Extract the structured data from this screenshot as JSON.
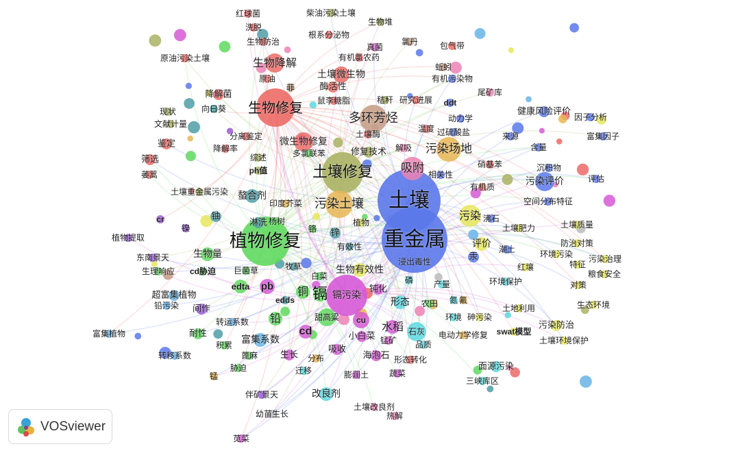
{
  "app": {
    "logo_text": "VOSviewer"
  },
  "cluster_colors": {
    "red": "#ec6a66",
    "green": "#5fd95f",
    "blue": "#5b78ea",
    "yellow": "#e6e65c",
    "magenta": "#d65ad6",
    "cyan": "#5ad8de",
    "brown": "#c49a82",
    "olive": "#aab263",
    "orange": "#e8b654",
    "teal": "#4f9ea6",
    "lightblue": "#67b4e6",
    "pink": "#ec82b4",
    "violet": "#9a5ad6",
    "grey": "#bbbbbb"
  },
  "nodes": [
    {
      "label": "红球菌",
      "cluster": "red"
    },
    {
      "label": "洗脱",
      "cluster": "red"
    },
    {
      "label": "柴油污染土壤",
      "cluster": "olive"
    },
    {
      "label": "生物堆",
      "cluster": "olive"
    },
    {
      "label": "根系分泌物",
      "cluster": "red"
    },
    {
      "label": "生物防治",
      "cluster": "red"
    },
    {
      "label": "真菌",
      "cluster": "magenta"
    },
    {
      "label": "氯丹",
      "cluster": "brown"
    },
    {
      "label": "包气带",
      "cluster": "red"
    },
    {
      "label": "原油污染土壤",
      "cluster": "red"
    },
    {
      "label": "生物降解",
      "cluster": "red"
    },
    {
      "label": "有机氯农药",
      "cluster": "red"
    },
    {
      "label": "蚯蚓",
      "cluster": "brown"
    },
    {
      "label": "有机污染物",
      "cluster": "blue"
    },
    {
      "label": "原油",
      "cluster": "red"
    },
    {
      "label": "土壤微生物",
      "cluster": "red"
    },
    {
      "label": "菲",
      "cluster": "brown"
    },
    {
      "label": "酶活性",
      "cluster": "red"
    },
    {
      "label": "降解菌",
      "cluster": "red"
    },
    {
      "label": "尾矿库",
      "cluster": "pink"
    },
    {
      "label": "秸秆",
      "cluster": "olive"
    },
    {
      "label": "研究进展",
      "cluster": "red"
    },
    {
      "label": "鼠李糖脂",
      "cluster": "red"
    },
    {
      "label": "ddt",
      "cluster": "blue"
    },
    {
      "label": "生物修复",
      "cluster": "red"
    },
    {
      "label": "现状",
      "cluster": "olive"
    },
    {
      "label": "向日葵",
      "cluster": "teal"
    },
    {
      "label": "健康风险评价",
      "cluster": "blue"
    },
    {
      "label": "因子分析",
      "cluster": "blue"
    },
    {
      "label": "动力学",
      "cluster": "blue"
    },
    {
      "label": "多环芳烃",
      "cluster": "brown"
    },
    {
      "label": "文献计量",
      "cluster": "olive"
    },
    {
      "label": "温度",
      "cluster": "red"
    },
    {
      "label": "过硫酸盐",
      "cluster": "blue"
    },
    {
      "label": "土壤酶",
      "cluster": "red"
    },
    {
      "label": "来源",
      "cluster": "blue"
    },
    {
      "label": "富集因子",
      "cluster": "blue"
    },
    {
      "label": "分离鉴定",
      "cluster": "red"
    },
    {
      "label": "鉴定",
      "cluster": "red"
    },
    {
      "label": "解吸",
      "cluster": "pink"
    },
    {
      "label": "微生物修复",
      "cluster": "red"
    },
    {
      "label": "降解率",
      "cluster": "red"
    },
    {
      "label": "含量",
      "cluster": "blue"
    },
    {
      "label": "修复技术",
      "cluster": "olive"
    },
    {
      "label": "多氯联苯",
      "cluster": "green"
    },
    {
      "label": "污染场地",
      "cluster": "orange"
    },
    {
      "label": "筛选",
      "cluster": "red"
    },
    {
      "label": "综述",
      "cluster": "olive"
    },
    {
      "label": "硝基苯",
      "cluster": "red"
    },
    {
      "label": "沉积物",
      "cluster": "blue"
    },
    {
      "label": "ph值",
      "cluster": "olive"
    },
    {
      "label": "吸附",
      "cluster": "pink"
    },
    {
      "label": "土壤修复",
      "cluster": "olive"
    },
    {
      "label": "相关性",
      "cluster": "blue"
    },
    {
      "label": "萎蒿",
      "cluster": "red"
    },
    {
      "label": "评估",
      "cluster": "blue"
    },
    {
      "label": "污染评价",
      "cluster": "blue"
    },
    {
      "label": "有机质",
      "cluster": "red"
    },
    {
      "label": "土壤重金属污染",
      "cluster": "olive"
    },
    {
      "label": "螯合剂",
      "cluster": "teal"
    },
    {
      "label": "空间分布特征",
      "cluster": "blue"
    },
    {
      "label": "印度芥菜",
      "cluster": "orange"
    },
    {
      "label": "土壤",
      "cluster": "blue"
    },
    {
      "label": "污染土壤",
      "cluster": "orange"
    },
    {
      "label": "铀",
      "cluster": "teal"
    },
    {
      "label": "淋洗",
      "cluster": "teal"
    },
    {
      "label": "杨树",
      "cluster": "green"
    },
    {
      "label": "cr",
      "cluster": "violet"
    },
    {
      "label": "镍",
      "cluster": "violet"
    },
    {
      "label": "污染",
      "cluster": "yellow"
    },
    {
      "label": "沸石",
      "cluster": "blue"
    },
    {
      "label": "植物",
      "cluster": "yellow"
    },
    {
      "label": "铬",
      "cluster": "green"
    },
    {
      "label": "土壤肥力",
      "cluster": "yellow"
    },
    {
      "label": "土壤质量",
      "cluster": "yellow"
    },
    {
      "label": "植物提取",
      "cluster": "violet"
    },
    {
      "label": "植物修复",
      "cluster": "green"
    },
    {
      "label": "锌",
      "cluster": "teal"
    },
    {
      "label": "重金属",
      "cluster": "blue"
    },
    {
      "label": "有效性",
      "cluster": "teal"
    },
    {
      "label": "评价",
      "cluster": "yellow"
    },
    {
      "label": "防治对策",
      "cluster": "yellow"
    },
    {
      "label": "潮土",
      "cluster": "blue"
    },
    {
      "label": "东南景天",
      "cluster": "violet"
    },
    {
      "label": "生物量",
      "cluster": "green"
    },
    {
      "label": "环境污染",
      "cluster": "yellow"
    },
    {
      "label": "汞",
      "cluster": "blue"
    },
    {
      "label": "污染治理",
      "cluster": "yellow"
    },
    {
      "label": "浸出毒性",
      "cluster": "blue"
    },
    {
      "label": "特征",
      "cluster": "yellow"
    },
    {
      "label": "牧草",
      "cluster": "teal"
    },
    {
      "label": "生理响应",
      "cluster": "green"
    },
    {
      "label": "cd胁迫",
      "cluster": "green"
    },
    {
      "label": "巨菌草",
      "cluster": "green"
    },
    {
      "label": "生物有效性",
      "cluster": "yellow"
    },
    {
      "label": "红壤",
      "cluster": "yellow"
    },
    {
      "label": "粮食安全",
      "cluster": "yellow"
    },
    {
      "label": "白菜",
      "cluster": "green"
    },
    {
      "label": "edta",
      "cluster": "green"
    },
    {
      "label": "pb",
      "cluster": "magenta"
    },
    {
      "label": "环境保护",
      "cluster": "cyan"
    },
    {
      "label": "磷",
      "cluster": "cyan"
    },
    {
      "label": "产量",
      "cluster": "cyan"
    },
    {
      "label": "对策",
      "cluster": "yellow"
    },
    {
      "label": "钝化",
      "cluster": "magenta"
    },
    {
      "label": "铜",
      "cluster": "green"
    },
    {
      "label": "镉",
      "cluster": "green"
    },
    {
      "label": "镉污染",
      "cluster": "magenta"
    },
    {
      "label": "超富集植物",
      "cluster": "lightblue"
    },
    {
      "label": "生态环境",
      "cluster": "yellow"
    },
    {
      "label": "edds",
      "cluster": "teal"
    },
    {
      "label": "形态",
      "cluster": "cyan"
    },
    {
      "label": "农田",
      "cluster": "green"
    },
    {
      "label": "氮",
      "cluster": "cyan"
    },
    {
      "label": "氟",
      "cluster": "orange"
    },
    {
      "label": "铅污染",
      "cluster": "lightblue"
    },
    {
      "label": "间作",
      "cluster": "violet"
    },
    {
      "label": "土地利用",
      "cluster": "yellow"
    },
    {
      "label": "甜高粱",
      "cluster": "green"
    },
    {
      "label": "环境",
      "cluster": "cyan"
    },
    {
      "label": "砷污染",
      "cluster": "yellow"
    },
    {
      "label": "铅",
      "cluster": "green"
    },
    {
      "label": "转运系数",
      "cluster": "lightblue"
    },
    {
      "label": "cu",
      "cluster": "magenta"
    },
    {
      "label": "水稻",
      "cluster": "magenta"
    },
    {
      "label": "石灰",
      "cluster": "cyan"
    },
    {
      "label": "污染防治",
      "cluster": "yellow"
    },
    {
      "label": "cd",
      "cluster": "magenta"
    },
    {
      "label": "电动力学修复",
      "cluster": "orange"
    },
    {
      "label": "swat模型",
      "cluster": "yellow"
    },
    {
      "label": "富集植物",
      "cluster": "lightblue"
    },
    {
      "label": "耐性",
      "cluster": "green"
    },
    {
      "label": "小白菜",
      "cluster": "magenta"
    },
    {
      "label": "富集系数",
      "cluster": "lightblue"
    },
    {
      "label": "锰矿",
      "cluster": "magenta"
    },
    {
      "label": "品质",
      "cluster": "cyan"
    },
    {
      "label": "土壤环境保护",
      "cluster": "yellow"
    },
    {
      "label": "积累",
      "cluster": "green"
    },
    {
      "label": "吸收",
      "cluster": "magenta"
    },
    {
      "label": "蓖麻",
      "cluster": "green"
    },
    {
      "label": "海泡石",
      "cluster": "magenta"
    },
    {
      "label": "转移系数",
      "cluster": "lightblue"
    },
    {
      "label": "生长",
      "cluster": "magenta"
    },
    {
      "label": "分布",
      "cluster": "orange"
    },
    {
      "label": "形态转化",
      "cluster": "red"
    },
    {
      "label": "面源污染",
      "cluster": "cyan"
    },
    {
      "label": "胁迫",
      "cluster": "green"
    },
    {
      "label": "迁移",
      "cluster": "cyan"
    },
    {
      "label": "膨润土",
      "cluster": "magenta"
    },
    {
      "label": "蔬菜",
      "cluster": "magenta"
    },
    {
      "label": "三峡库区",
      "cluster": "cyan"
    },
    {
      "label": "锰",
      "cluster": "orange"
    },
    {
      "label": "伴矿景天",
      "cluster": "violet"
    },
    {
      "label": "改良剂",
      "cluster": "cyan"
    },
    {
      "label": "土壤改良剂",
      "cluster": "pink"
    },
    {
      "label": "幼苗生长",
      "cluster": "grey"
    },
    {
      "label": "热解",
      "cluster": "pink"
    },
    {
      "label": "苋菜",
      "cluster": "magenta"
    }
  ]
}
